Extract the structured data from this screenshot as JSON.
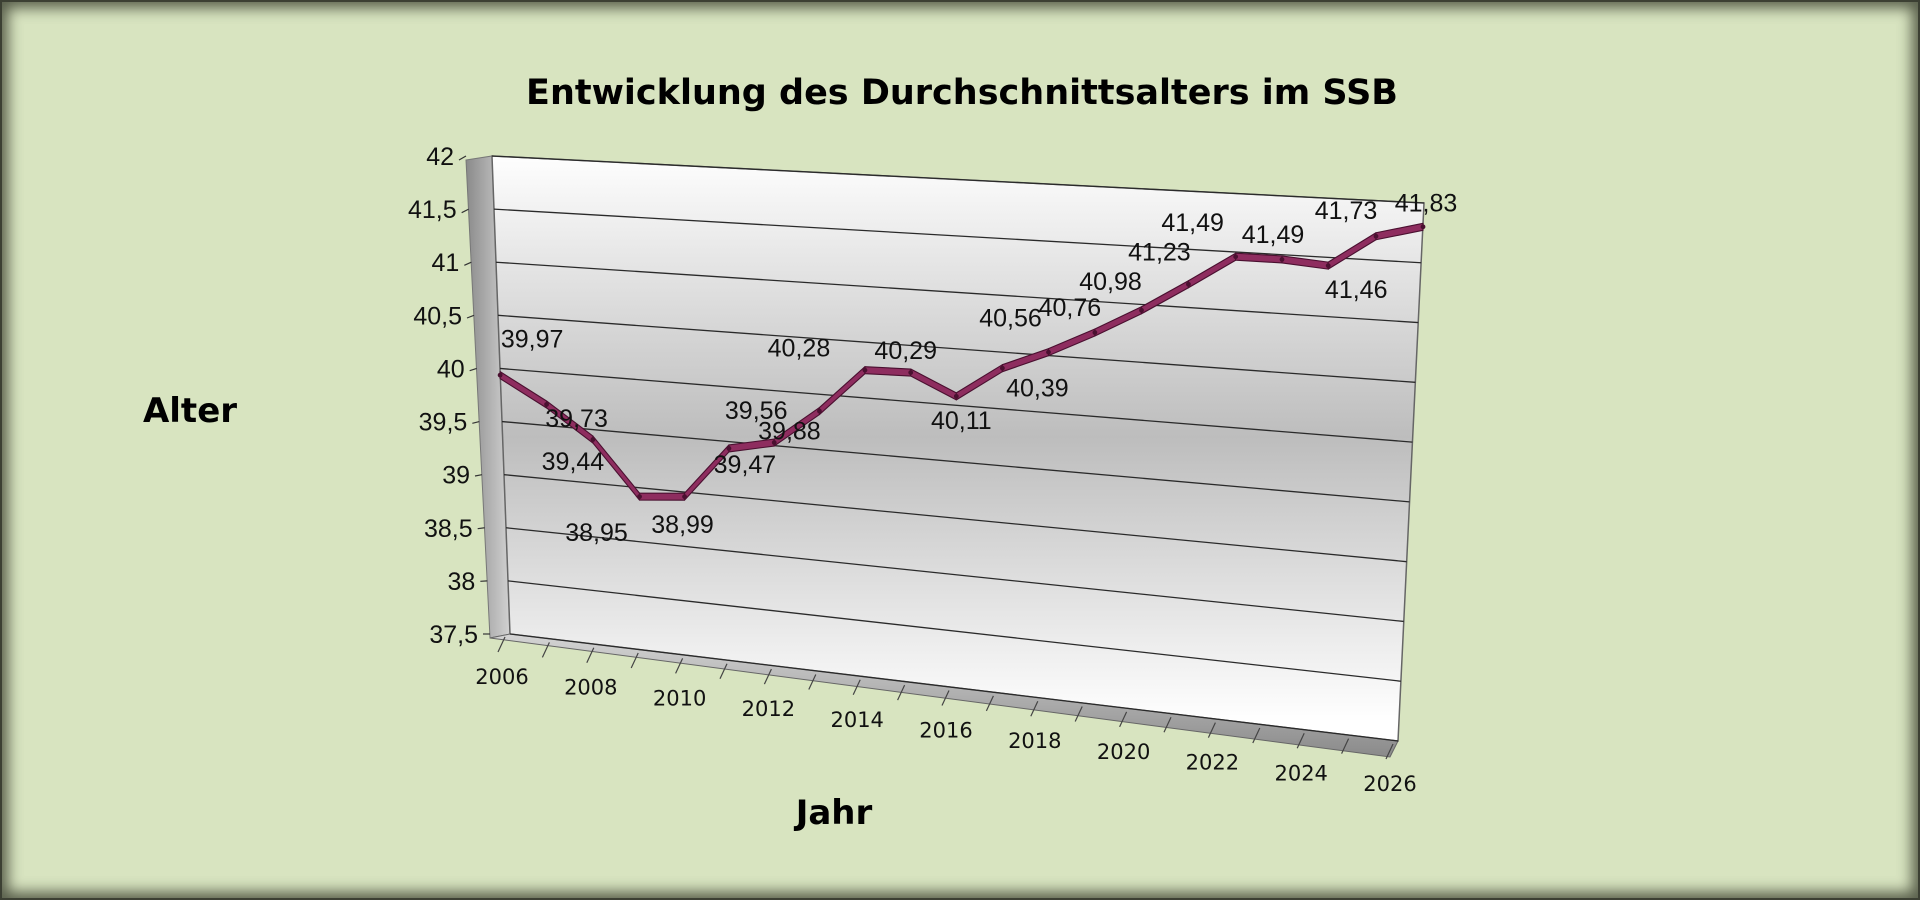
{
  "chart_data": {
    "type": "line",
    "title": "Entwicklung des Durchschnittsalters im SSB",
    "xlabel": "Jahr",
    "ylabel": "Alter",
    "ylim": [
      37.5,
      42
    ],
    "y_ticks": [
      "37,5",
      "38",
      "38,5",
      "39",
      "39,5",
      "40",
      "40,5",
      "41",
      "41,5",
      "42"
    ],
    "x_tick_labels": [
      "2006",
      "2008",
      "2010",
      "2012",
      "2014",
      "2016",
      "2018",
      "2020",
      "2022",
      "2024",
      "2026"
    ],
    "x": [
      2006,
      2007,
      2008,
      2009,
      2010,
      2011,
      2012,
      2013,
      2014,
      2015,
      2016,
      2017,
      2018,
      2019,
      2020,
      2021,
      2022,
      2023,
      2024,
      2025,
      2026
    ],
    "series": [
      {
        "name": "Durchschnittsalter",
        "values": [
          39.97,
          39.73,
          39.44,
          38.95,
          38.99,
          39.47,
          39.56,
          39.88,
          40.28,
          40.29,
          40.11,
          40.39,
          40.56,
          40.76,
          40.98,
          41.23,
          41.49,
          41.49,
          41.46,
          41.73,
          41.83
        ],
        "labels": [
          "39,97",
          "39,73",
          "39,44",
          "38,95",
          "38,99",
          "39,47",
          "39,56",
          "39,88",
          "40,28",
          "40,29",
          "40,11",
          "40,39",
          "40,56",
          "40,76",
          "40,98",
          "41,23",
          "41,49",
          "41,49",
          "41,46",
          "41,73",
          "41,83"
        ],
        "color": "#8e2d5f"
      }
    ],
    "grid": true,
    "legend": "none"
  },
  "colors": {
    "background": "#d8e4c0",
    "plot_wall": "#ffffff",
    "line": "#8e2d5f",
    "line_dark": "#4a1030"
  }
}
